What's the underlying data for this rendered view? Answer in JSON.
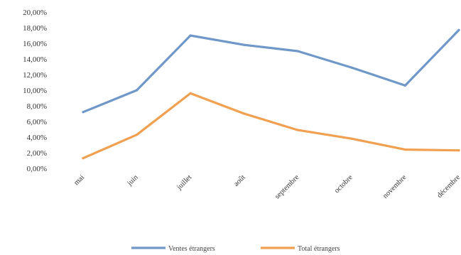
{
  "chart_data": {
    "type": "line",
    "categories": [
      "mai",
      "juin",
      "juillet",
      "août",
      "septembre",
      "octobre",
      "novembre",
      "décembre"
    ],
    "series": [
      {
        "name": "Ventes étrangers",
        "color": "#6f98c9",
        "values": [
          7.2,
          10.0,
          17.0,
          15.8,
          15.0,
          12.9,
          10.6,
          17.7
        ]
      },
      {
        "name": "Total étrangers",
        "color": "#f0a050",
        "values": [
          1.3,
          4.3,
          9.6,
          7.0,
          4.9,
          3.8,
          2.4,
          2.3
        ]
      }
    ],
    "y_ticks": [
      "0,00%",
      "2,00%",
      "4,00%",
      "6,00%",
      "8,00%",
      "10,00%",
      "12,00%",
      "14,00%",
      "16,00%",
      "18,00%",
      "20,00%"
    ],
    "ylim": [
      0,
      20
    ],
    "y_unit": "%",
    "grid": false,
    "legend_position": "bottom",
    "title": "",
    "xlabel": "",
    "ylabel": ""
  }
}
